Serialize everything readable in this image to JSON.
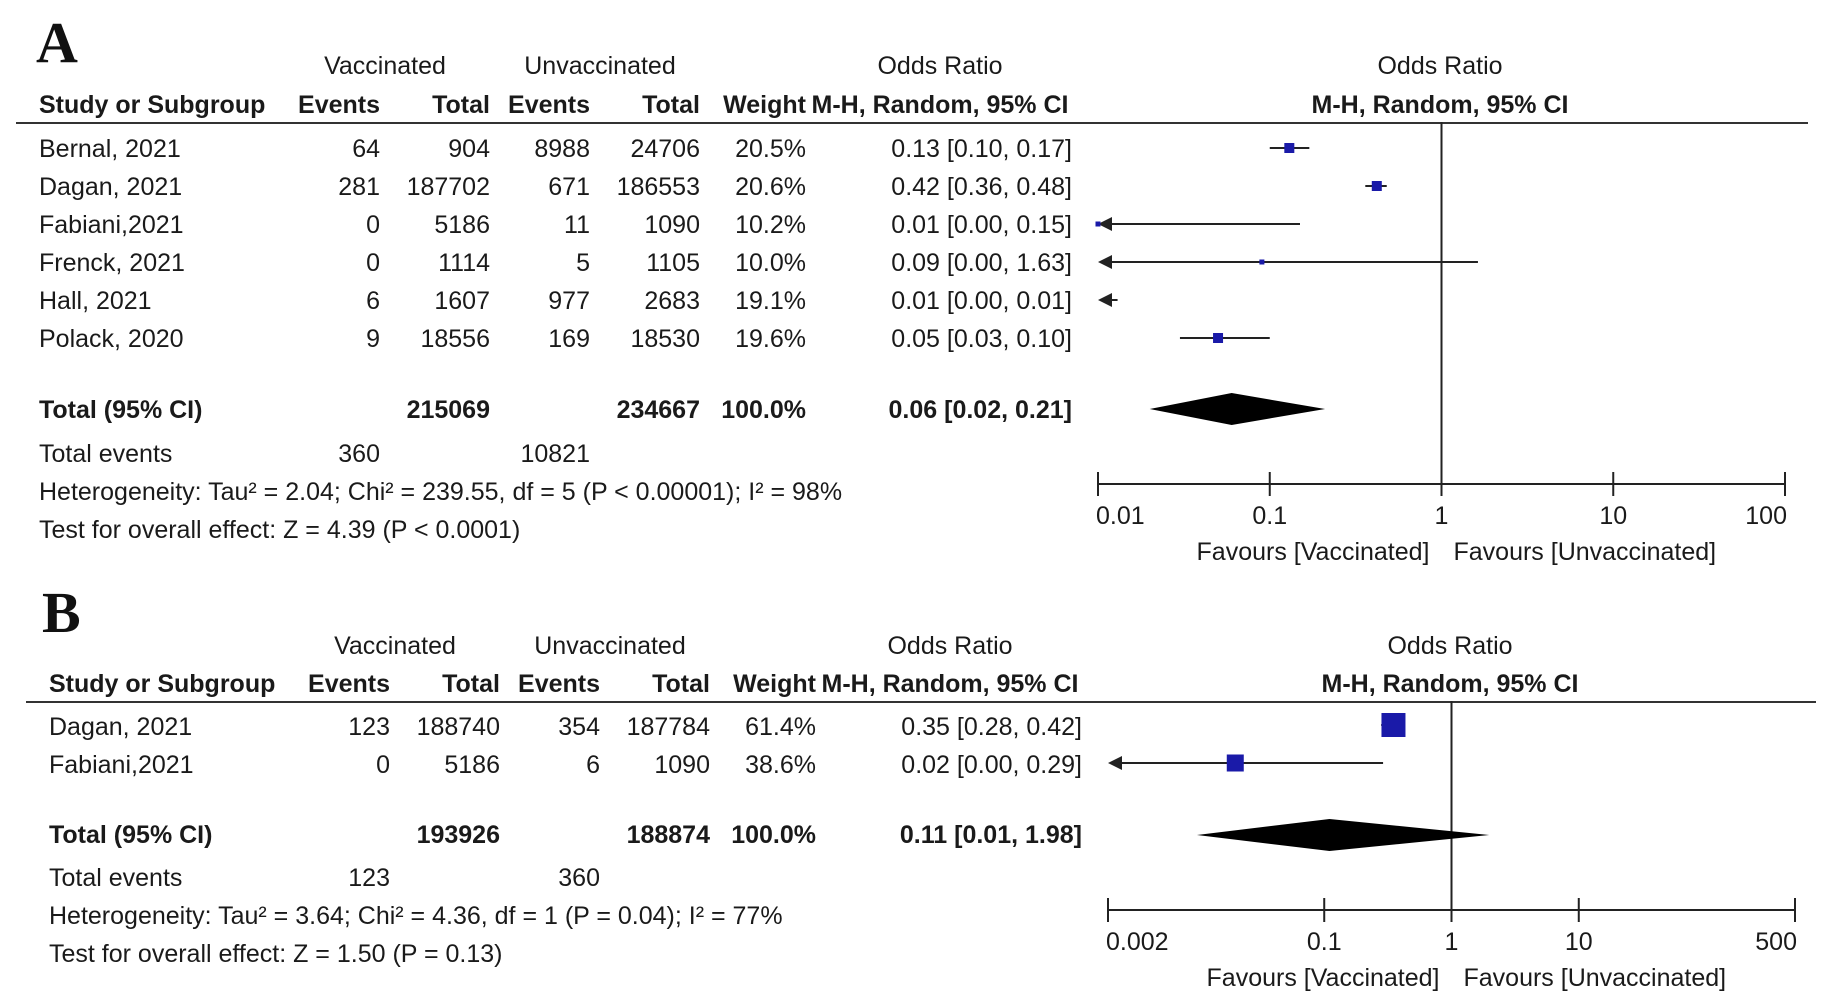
{
  "colors": {
    "marker": "#1a1aa8",
    "diamond": "#000000",
    "lines": "#222222"
  },
  "headers": {
    "study": "Study or Subgroup",
    "vaccinated": "Vaccinated",
    "unvaccinated": "Unvaccinated",
    "events": "Events",
    "total": "Total",
    "weight": "Weight",
    "odds_ratio": "Odds Ratio",
    "method": "M-H, Random, 95% CI"
  },
  "chart_data": [
    {
      "type": "forest",
      "panel_label": "A",
      "x_scale": "log",
      "xlim": [
        0.01,
        100
      ],
      "x_ticks": [
        "0.01",
        "0.1",
        "1",
        "10",
        "100"
      ],
      "reference_line": 1,
      "favours_left": "Favours [Vaccinated]",
      "favours_right": "Favours [Unvaccinated]",
      "studies": [
        {
          "name": "Bernal, 2021",
          "vac_events": "64",
          "vac_total": "904",
          "unvac_events": "8988",
          "unvac_total": "24706",
          "weight": "20.5%",
          "ci_text": "0.13 [0.10, 0.17]",
          "or": 0.13,
          "lo": 0.1,
          "hi": 0.17,
          "w": 20.5
        },
        {
          "name": "Dagan, 2021",
          "vac_events": "281",
          "vac_total": "187702",
          "unvac_events": "671",
          "unvac_total": "186553",
          "weight": "20.6%",
          "ci_text": "0.42 [0.36, 0.48]",
          "or": 0.42,
          "lo": 0.36,
          "hi": 0.48,
          "w": 20.6
        },
        {
          "name": "Fabiani,2021",
          "vac_events": "0",
          "vac_total": "5186",
          "unvac_events": "11",
          "unvac_total": "1090",
          "weight": "10.2%",
          "ci_text": "0.01 [0.00, 0.15]",
          "or": 0.01,
          "lo": 0.0,
          "hi": 0.15,
          "w": 10.2
        },
        {
          "name": "Frenck, 2021",
          "vac_events": "0",
          "vac_total": "1114",
          "unvac_events": "5",
          "unvac_total": "1105",
          "weight": "10.0%",
          "ci_text": "0.09 [0.00, 1.63]",
          "or": 0.09,
          "lo": 0.0,
          "hi": 1.63,
          "w": 10.0
        },
        {
          "name": "Hall, 2021",
          "vac_events": "6",
          "vac_total": "1607",
          "unvac_events": "977",
          "unvac_total": "2683",
          "weight": "19.1%",
          "ci_text": "0.01 [0.00, 0.01]",
          "or": 0.005,
          "lo": 0.0,
          "hi": 0.013,
          "w": 19.1
        },
        {
          "name": "Polack, 2020",
          "vac_events": "9",
          "vac_total": "18556",
          "unvac_events": "169",
          "unvac_total": "18530",
          "weight": "19.6%",
          "ci_text": "0.05 [0.03, 0.10]",
          "or": 0.05,
          "lo": 0.03,
          "hi": 0.1,
          "w": 19.6
        }
      ],
      "total": {
        "label": "Total (95% CI)",
        "vac_total": "215069",
        "unvac_total": "234667",
        "weight": "100.0%",
        "ci_text": "0.06 [0.02, 0.21]",
        "or": 0.06,
        "lo": 0.02,
        "hi": 0.21
      },
      "total_events": {
        "label": "Total events",
        "vac": "360",
        "unvac": "10821"
      },
      "heterogeneity": "Heterogeneity: Tau² = 2.04; Chi² = 239.55, df = 5 (P < 0.00001); I² = 98%",
      "overall_effect": "Test for overall effect: Z = 4.39 (P < 0.0001)"
    },
    {
      "type": "forest",
      "panel_label": "B",
      "x_scale": "log",
      "xlim": [
        0.002,
        500
      ],
      "x_ticks": [
        "0.002",
        "0.1",
        "1",
        "10",
        "500"
      ],
      "reference_line": 1,
      "favours_left": "Favours [Vaccinated]",
      "favours_right": "Favours [Unvaccinated]",
      "studies": [
        {
          "name": "Dagan, 2021",
          "vac_events": "123",
          "vac_total": "188740",
          "unvac_events": "354",
          "unvac_total": "187784",
          "weight": "61.4%",
          "ci_text": "0.35 [0.28, 0.42]",
          "or": 0.35,
          "lo": 0.28,
          "hi": 0.42,
          "w": 61.4
        },
        {
          "name": "Fabiani,2021",
          "vac_events": "0",
          "vac_total": "5186",
          "unvac_events": "6",
          "unvac_total": "1090",
          "weight": "38.6%",
          "ci_text": "0.02 [0.00, 0.29]",
          "or": 0.02,
          "lo": 0.0,
          "hi": 0.29,
          "w": 38.6
        }
      ],
      "total": {
        "label": "Total (95% CI)",
        "vac_total": "193926",
        "unvac_total": "188874",
        "weight": "100.0%",
        "ci_text": "0.11 [0.01, 1.98]",
        "or": 0.11,
        "lo": 0.01,
        "hi": 1.98
      },
      "total_events": {
        "label": "Total events",
        "vac": "123",
        "unvac": "360"
      },
      "heterogeneity": "Heterogeneity: Tau² = 3.64; Chi² = 4.36, df = 1 (P = 0.04); I² = 77%",
      "overall_effect": "Test for overall effect: Z = 1.50 (P = 0.13)"
    }
  ]
}
